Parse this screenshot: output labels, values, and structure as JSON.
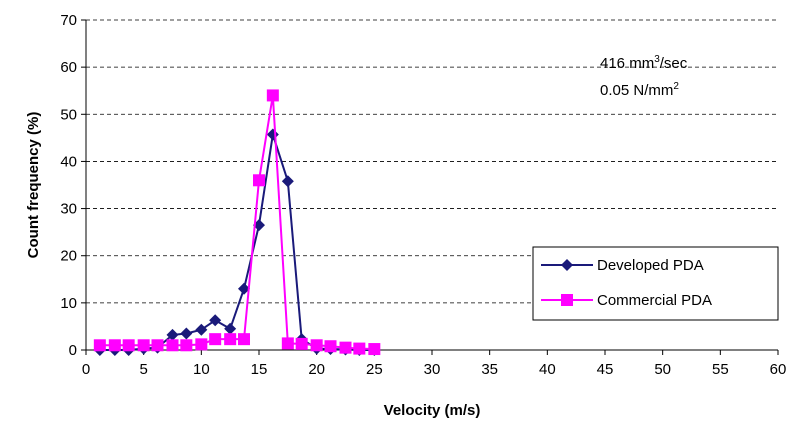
{
  "chart_data": {
    "type": "line",
    "xlabel": "Velocity (m/s)",
    "ylabel": "Count frequency (%)",
    "annotations": [
      [
        "416 mm",
        "3",
        "/sec"
      ],
      [
        "0.05 N/mm",
        "2"
      ]
    ],
    "xlim": [
      0,
      60
    ],
    "xticks": [
      0,
      5,
      10,
      15,
      20,
      25,
      30,
      35,
      40,
      45,
      50,
      55,
      60
    ],
    "ylim": [
      0,
      70
    ],
    "yticks": [
      0,
      10,
      20,
      30,
      40,
      50,
      60,
      70
    ],
    "grid": true,
    "legend": "lower right",
    "series": [
      {
        "name": "Developed PDA",
        "color": "#1a1a7a",
        "marker": "diamond",
        "x": [
          1.2,
          2.5,
          3.7,
          5,
          6.2,
          7.5,
          8.7,
          10,
          11.2,
          12.5,
          13.7,
          15,
          16.2,
          17.5,
          18.7,
          20,
          21.2,
          22.5,
          23.7,
          25
        ],
        "values": [
          0,
          0,
          0,
          0.3,
          0.5,
          3.2,
          3.5,
          4.3,
          6.3,
          4.5,
          13,
          26.5,
          45.7,
          35.8,
          2.3,
          0.3,
          0.2,
          0.1,
          0,
          0
        ]
      },
      {
        "name": "Commercial PDA",
        "color": "#ff00ff",
        "marker": "square",
        "x": [
          1.2,
          2.5,
          3.7,
          5,
          6.2,
          7.5,
          8.7,
          10,
          11.2,
          12.5,
          13.7,
          15,
          16.2,
          17.5,
          18.7,
          20,
          21.2,
          22.5,
          23.7,
          25
        ],
        "values": [
          1,
          1,
          1,
          1,
          1,
          1,
          1,
          1.2,
          2.3,
          2.3,
          2.3,
          36,
          54,
          1.4,
          1.3,
          1,
          0.8,
          0.5,
          0.3,
          0.2
        ]
      }
    ]
  }
}
